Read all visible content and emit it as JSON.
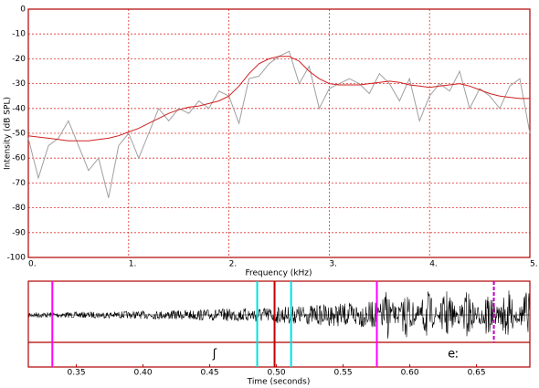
{
  "chart_data": [
    {
      "type": "line",
      "ylabel": "Intensity (dB SPL)",
      "xlabel": "Frequency (kHz)",
      "xlim": [
        0,
        5
      ],
      "ylim": [
        -100,
        0
      ],
      "xticks": [
        {
          "value": 0,
          "label": "0."
        },
        {
          "value": 1,
          "label": "1."
        },
        {
          "value": 2,
          "label": "2."
        },
        {
          "value": 3,
          "label": "3."
        },
        {
          "value": 4,
          "label": "4."
        },
        {
          "value": 5,
          "label": "5."
        }
      ],
      "yticks": [
        0,
        -10,
        -20,
        -30,
        -40,
        -50,
        -60,
        -70,
        -80,
        -90,
        -100
      ],
      "grid": true,
      "x": [
        0,
        0.1,
        0.2,
        0.3,
        0.4,
        0.5,
        0.6,
        0.7,
        0.8,
        0.9,
        1,
        1.1,
        1.2,
        1.3,
        1.4,
        1.5,
        1.6,
        1.7,
        1.8,
        1.9,
        2,
        2.1,
        2.2,
        2.3,
        2.4,
        2.5,
        2.6,
        2.7,
        2.8,
        2.9,
        3,
        3.1,
        3.2,
        3.3,
        3.4,
        3.5,
        3.6,
        3.7,
        3.8,
        3.9,
        4,
        4.1,
        4.2,
        4.3,
        4.4,
        4.5,
        4.6,
        4.7,
        4.8,
        4.9,
        5
      ],
      "series": [
        {
          "color": "#a0a0a0",
          "values": [
            -52,
            -68,
            -55,
            -52,
            -45,
            -55,
            -65,
            -60,
            -76,
            -55,
            -50,
            -60,
            -50,
            -40,
            -45,
            -40,
            -42,
            -37,
            -40,
            -33,
            -35,
            -46,
            -28,
            -27,
            -22,
            -19,
            -17,
            -30,
            -23,
            -40,
            -32,
            -30,
            -28,
            -30,
            -34,
            -26,
            -30,
            -37,
            -28,
            -45,
            -35,
            -30,
            -33,
            -25,
            -40,
            -32,
            -35,
            -40,
            -31,
            -28,
            -50
          ]
        },
        {
          "color": "#d02020",
          "values": [
            -51,
            -51.5,
            -52,
            -52.5,
            -53,
            -53,
            -53,
            -52.5,
            -52,
            -51,
            -49.5,
            -48,
            -46,
            -44,
            -42,
            -40.5,
            -39.5,
            -39,
            -38,
            -37,
            -35,
            -31,
            -26,
            -22,
            -20,
            -19,
            -19,
            -21,
            -25,
            -28,
            -30,
            -30.5,
            -30.5,
            -30.5,
            -30,
            -29.5,
            -29,
            -29.5,
            -30.5,
            -31,
            -31.5,
            -31,
            -30.5,
            -30,
            -31,
            -32.5,
            -34,
            -35,
            -35.5,
            -36,
            -36
          ]
        }
      ]
    },
    {
      "type": "waveform",
      "xlabel": "Time (seconds)",
      "xlim": [
        0.314,
        0.69
      ],
      "xticks": [
        0.35,
        {
          "value": 0.4,
          "label": "0.40"
        },
        0.45,
        {
          "value": 0.5,
          "label": "0.50"
        },
        0.55,
        {
          "value": 0.6,
          "label": "0.60"
        },
        0.65
      ],
      "markers": [
        {
          "x": 0.332,
          "color": "#ff00ff"
        },
        {
          "x": 0.4856,
          "color": "#00e0e0"
        },
        {
          "x": 0.4986,
          "color": "#c00000"
        },
        {
          "x": 0.511,
          "color": "#00e0e0"
        },
        {
          "x": 0.5753,
          "color": "#ff00ff"
        },
        {
          "x": 0.663,
          "color": "#c000c0",
          "dashed": true
        }
      ],
      "segments": [
        {
          "label": "ʃ",
          "start": 0.332,
          "end": 0.5753
        },
        {
          "label": "eː",
          "start": 0.5753,
          "end": 0.69
        }
      ]
    }
  ]
}
